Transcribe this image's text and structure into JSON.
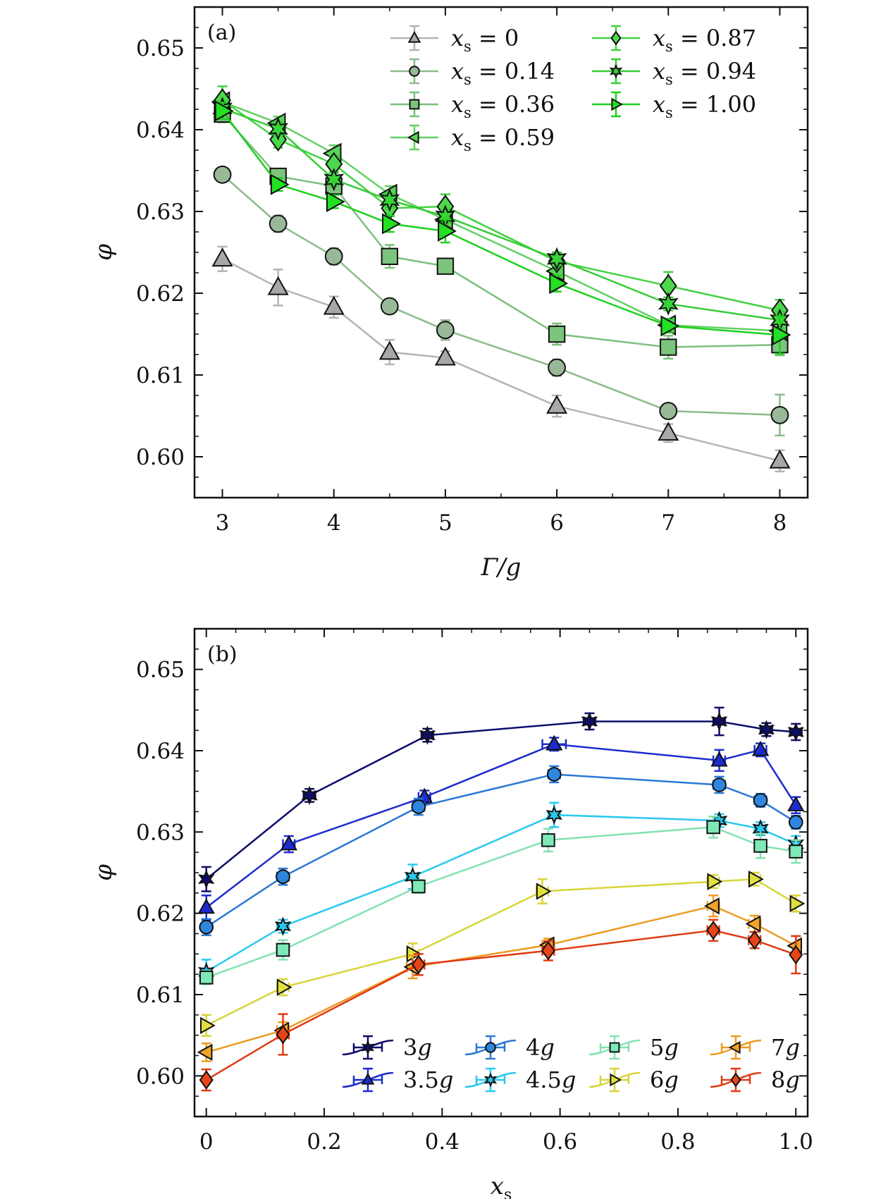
{
  "chart_data": [
    {
      "panel_label": "(a)",
      "type": "line",
      "xlabel": "Γ/g",
      "ylabel": "φ",
      "xlim": [
        2.75,
        8.25
      ],
      "ylim": [
        0.595,
        0.655
      ],
      "xticks": [
        3,
        4,
        5,
        6,
        7,
        8
      ],
      "yticks": [
        0.6,
        0.61,
        0.62,
        0.63,
        0.64,
        0.65
      ],
      "ytick_labels": [
        "0.60",
        "0.61",
        "0.62",
        "0.63",
        "0.64",
        "0.65"
      ],
      "legend_position": "top-right",
      "x": [
        3,
        3.5,
        4,
        4.5,
        5,
        6,
        7,
        8
      ],
      "series": [
        {
          "name": "x_s = 0",
          "label_var": "x",
          "label_sub": "s",
          "label_val": "= 0",
          "marker": "triangle-up",
          "color": "#a8a8a8",
          "line": "#b4b4b4",
          "values": [
            0.6242,
            0.6207,
            0.6183,
            0.6128,
            0.6121,
            0.6062,
            0.6029,
            0.5995
          ],
          "err": [
            0.0015,
            0.0022,
            0.0013,
            0.0015,
            0.0008,
            0.0013,
            0.0011,
            0.0013
          ]
        },
        {
          "name": "x_s = 0.14",
          "label_var": "x",
          "label_sub": "s",
          "label_val": "= 0.14",
          "marker": "circle",
          "color": "#98b898",
          "line": "#8cba8c",
          "values": [
            0.6345,
            0.6285,
            0.6245,
            0.6184,
            0.6155,
            0.6109,
            0.6056,
            0.6051
          ],
          "err": [
            0.0008,
            0.001,
            0.001,
            0.0008,
            0.0012,
            0.001,
            0.0008,
            0.0025
          ]
        },
        {
          "name": "x_s = 0.36",
          "label_var": "x",
          "label_sub": "s",
          "label_val": "= 0.36",
          "marker": "square",
          "color": "#7cc47c",
          "line": "#7cc07c",
          "values": [
            0.6419,
            0.6343,
            0.6331,
            0.6245,
            0.6233,
            0.615,
            0.6134,
            0.6137
          ],
          "err": [
            0.001,
            0.0008,
            0.0008,
            0.0014,
            0.0008,
            0.0013,
            0.0014,
            0.0013
          ]
        },
        {
          "name": "x_s = 0.59",
          "label_var": "x",
          "label_sub": "s",
          "label_val": "= 0.59",
          "marker": "triangle-left",
          "color": "#5ad35a",
          "line": "#62d062",
          "values": [
            0.6434,
            0.6408,
            0.6371,
            0.6321,
            0.629,
            0.6227,
            0.6161,
            0.6154
          ],
          "err": [
            0.0008,
            0.0008,
            0.001,
            0.001,
            0.001,
            0.001,
            0.0008,
            0.0012
          ]
        },
        {
          "name": "x_s = 0.87",
          "label_var": "x",
          "label_sub": "s",
          "label_val": "= 0.87",
          "marker": "diamond",
          "color": "#4cd84c",
          "line": "#44d244",
          "values": [
            0.6436,
            0.6388,
            0.6358,
            0.6304,
            0.6306,
            0.6239,
            0.6209,
            0.6179
          ],
          "err": [
            0.0017,
            0.001,
            0.001,
            0.001,
            0.0015,
            0.001,
            0.0017,
            0.0013
          ]
        },
        {
          "name": "x_s = 0.94",
          "label_var": "x",
          "label_sub": "s",
          "label_val": "= 0.94",
          "marker": "star",
          "color": "#36d436",
          "line": "#36cc36",
          "values": [
            0.6426,
            0.6401,
            0.6339,
            0.6314,
            0.6294,
            0.6242,
            0.6187,
            0.6167
          ],
          "err": [
            0.0008,
            0.0008,
            0.0008,
            0.0008,
            0.0008,
            0.0008,
            0.0008,
            0.001
          ]
        },
        {
          "name": "x_s = 1.00",
          "label_var": "x",
          "label_sub": "s",
          "label_val": "= 1.00",
          "marker": "triangle-right",
          "color": "#22e022",
          "line": "#1ed01e",
          "values": [
            0.6423,
            0.6333,
            0.6312,
            0.6285,
            0.6276,
            0.6212,
            0.616,
            0.6149
          ],
          "err": [
            0.001,
            0.0008,
            0.0008,
            0.001,
            0.0014,
            0.001,
            0.0008,
            0.0023
          ]
        }
      ]
    },
    {
      "panel_label": "(b)",
      "type": "line",
      "xlabel": "x",
      "xlabel_sub": "s",
      "ylabel": "φ",
      "xlim": [
        -0.02,
        1.02
      ],
      "ylim": [
        0.595,
        0.655
      ],
      "xticks": [
        0,
        0.2,
        0.4,
        0.6,
        0.8,
        1.0
      ],
      "xtick_labels": [
        "0",
        "0.2",
        "0.4",
        "0.6",
        "0.8",
        "1.0"
      ],
      "yticks": [
        0.6,
        0.61,
        0.62,
        0.63,
        0.64,
        0.65
      ],
      "ytick_labels": [
        "0.60",
        "0.61",
        "0.62",
        "0.63",
        "0.64",
        "0.65"
      ],
      "legend_position": "bottom-right",
      "series": [
        {
          "name": "3g",
          "label_num": "3",
          "marker": "star",
          "color": "#0e0e6a",
          "line": "#0e0e6a",
          "x": [
            0,
            0.175,
            0.375,
            0.65,
            0.87,
            0.95,
            1.0
          ],
          "values": [
            0.6242,
            0.6345,
            0.6419,
            0.6436,
            0.6436,
            0.6426,
            0.6423
          ],
          "err": [
            0.0015,
            0.0008,
            0.0008,
            0.001,
            0.0017,
            0.0008,
            0.001
          ],
          "xerr": [
            0,
            0.01,
            0.01,
            0.01,
            0.01,
            0.01,
            0.01
          ]
        },
        {
          "name": "3.5g",
          "label_num": "3.5",
          "marker": "triangle-up",
          "color": "#1c2ccf",
          "line": "#1c2ccf",
          "x": [
            0,
            0.14,
            0.37,
            0.59,
            0.87,
            0.94,
            1.0
          ],
          "values": [
            0.6207,
            0.6285,
            0.6343,
            0.6408,
            0.6388,
            0.6401,
            0.6333
          ],
          "err": [
            0.0015,
            0.001,
            0.0008,
            0.0008,
            0.0013,
            0.0008,
            0.001
          ],
          "xerr": [
            0,
            0.01,
            0.01,
            0.02,
            0.01,
            0.01,
            0
          ]
        },
        {
          "name": "4g",
          "label_num": "4",
          "marker": "circle",
          "color": "#2e86de",
          "line": "#2b78d6",
          "x": [
            0,
            0.13,
            0.36,
            0.59,
            0.87,
            0.94,
            1.0
          ],
          "values": [
            0.6183,
            0.6245,
            0.6331,
            0.6371,
            0.6358,
            0.6339,
            0.6312
          ],
          "err": [
            0.001,
            0.001,
            0.001,
            0.001,
            0.001,
            0.0008,
            0.0008
          ],
          "xerr": [
            0,
            0.01,
            0.01,
            0.01,
            0.01,
            0.01,
            0
          ]
        },
        {
          "name": "4.5g",
          "label_num": "4.5",
          "marker": "star",
          "color": "#29c9ee",
          "line": "#29c9ee",
          "x": [
            0,
            0.13,
            0.35,
            0.59,
            0.87,
            0.94,
            1.0
          ],
          "values": [
            0.6128,
            0.6184,
            0.6245,
            0.6321,
            0.6314,
            0.6304,
            0.6285
          ],
          "err": [
            0.0015,
            0.0008,
            0.0015,
            0.0015,
            0.0008,
            0.0008,
            0.001
          ],
          "xerr": [
            0,
            0.01,
            0.01,
            0.01,
            0.01,
            0.01,
            0
          ]
        },
        {
          "name": "5g",
          "label_num": "5",
          "marker": "square",
          "color": "#7ee8b8",
          "line": "#82e2b0",
          "x": [
            0,
            0.13,
            0.36,
            0.58,
            0.86,
            0.94,
            1.0
          ],
          "values": [
            0.6121,
            0.6155,
            0.6233,
            0.629,
            0.6306,
            0.6283,
            0.6276
          ],
          "err": [
            0.0008,
            0.0012,
            0.0008,
            0.0014,
            0.0013,
            0.0015,
            0.0014
          ],
          "xerr": [
            0,
            0.01,
            0.01,
            0.01,
            0.01,
            0,
            0
          ]
        },
        {
          "name": "6g",
          "label_num": "6",
          "marker": "triangle-right",
          "color": "#e2e040",
          "line": "#d8d43a",
          "x": [
            0,
            0.13,
            0.35,
            0.57,
            0.86,
            0.93,
            1.0
          ],
          "values": [
            0.6062,
            0.6109,
            0.615,
            0.6227,
            0.6239,
            0.6242,
            0.6212
          ],
          "err": [
            0.0013,
            0.001,
            0.0013,
            0.0015,
            0.0008,
            0.0008,
            0.001
          ],
          "xerr": [
            0,
            0.01,
            0.01,
            0.01,
            0.01,
            0.01,
            0
          ]
        },
        {
          "name": "7g",
          "label_num": "7",
          "marker": "triangle-left",
          "color": "#f0a42a",
          "line": "#ec9c22",
          "x": [
            0,
            0.13,
            0.35,
            0.58,
            0.86,
            0.93,
            1.0
          ],
          "values": [
            0.6029,
            0.6056,
            0.6134,
            0.6161,
            0.6209,
            0.6187,
            0.616
          ],
          "err": [
            0.0011,
            0.001,
            0.0014,
            0.0008,
            0.0013,
            0.001,
            0.0012
          ],
          "xerr": [
            0,
            0.01,
            0.01,
            0.01,
            0.01,
            0.01,
            0
          ]
        },
        {
          "name": "8g",
          "label_num": "8",
          "marker": "diamond",
          "color": "#e84418",
          "line": "#e03c14",
          "x": [
            0,
            0.13,
            0.36,
            0.58,
            0.86,
            0.93,
            1.0
          ],
          "values": [
            0.5995,
            0.6051,
            0.6137,
            0.6154,
            0.6179,
            0.6167,
            0.6149
          ],
          "err": [
            0.0013,
            0.0025,
            0.0013,
            0.0012,
            0.0013,
            0.001,
            0.0023
          ],
          "xerr": [
            0,
            0.01,
            0.01,
            0.01,
            0.01,
            0.01,
            0
          ]
        }
      ]
    }
  ]
}
